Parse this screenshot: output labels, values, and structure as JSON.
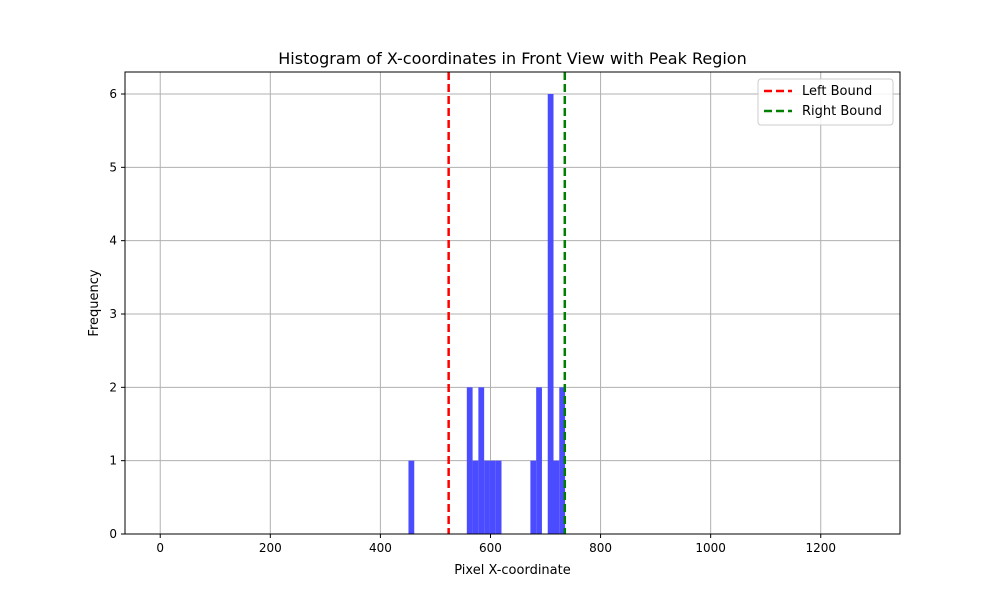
{
  "chart_data": {
    "type": "bar",
    "title": "Histogram of X-coordinates in Front View with Peak Region",
    "xlabel": "Pixel X-coordinate",
    "ylabel": "Frequency",
    "xlim": [
      -64,
      1344
    ],
    "ylim": [
      0,
      6.3
    ],
    "grid": true,
    "bar_color": "#4b4bff",
    "x_ticks": [
      0,
      200,
      400,
      600,
      800,
      1000,
      1200
    ],
    "y_ticks": [
      0,
      1,
      2,
      3,
      4,
      5,
      6
    ],
    "bin_width": 10.5,
    "bins": [
      {
        "x": 451,
        "count": 1
      },
      {
        "x": 557,
        "count": 2
      },
      {
        "x": 567.5,
        "count": 1
      },
      {
        "x": 578,
        "count": 2
      },
      {
        "x": 588.5,
        "count": 1
      },
      {
        "x": 599,
        "count": 1
      },
      {
        "x": 609.5,
        "count": 1
      },
      {
        "x": 672.5,
        "count": 1
      },
      {
        "x": 683,
        "count": 2
      },
      {
        "x": 704,
        "count": 6
      },
      {
        "x": 714.5,
        "count": 1
      },
      {
        "x": 725,
        "count": 2
      }
    ],
    "reference_lines": [
      {
        "name": "Left Bound",
        "x": 524,
        "color": "#ff0000"
      },
      {
        "name": "Right Bound",
        "x": 735,
        "color": "#008000"
      }
    ],
    "legend_position": "top-right"
  }
}
